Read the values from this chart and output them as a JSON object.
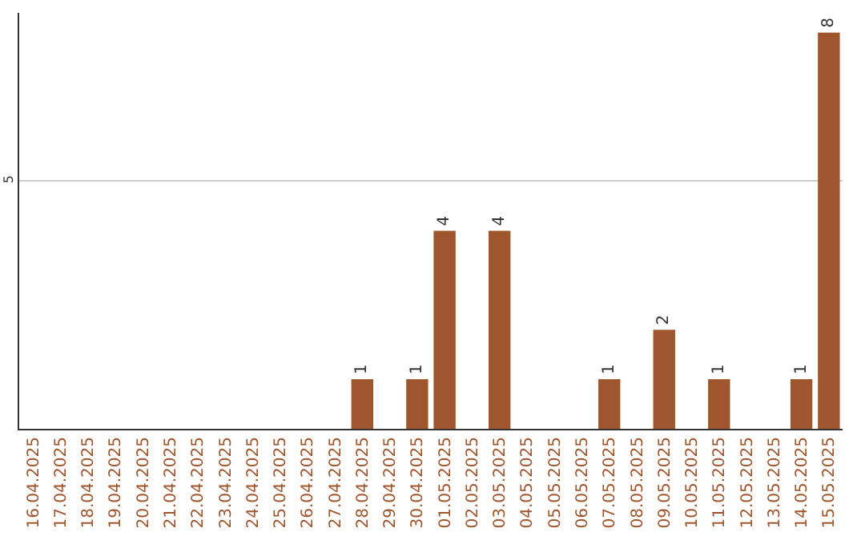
{
  "chart_data": {
    "type": "bar",
    "categories": [
      "16.04.2025",
      "17.04.2025",
      "18.04.2025",
      "19.04.2025",
      "20.04.2025",
      "21.04.2025",
      "22.04.2025",
      "23.04.2025",
      "24.04.2025",
      "25.04.2025",
      "26.04.2025",
      "27.04.2025",
      "28.04.2025",
      "29.04.2025",
      "30.04.2025",
      "01.05.2025",
      "02.05.2025",
      "03.05.2025",
      "04.05.2025",
      "05.05.2025",
      "06.05.2025",
      "07.05.2025",
      "08.05.2025",
      "09.05.2025",
      "10.05.2025",
      "11.05.2025",
      "12.05.2025",
      "13.05.2025",
      "14.05.2025",
      "15.05.2025"
    ],
    "values": [
      null,
      null,
      null,
      null,
      null,
      null,
      null,
      null,
      null,
      null,
      null,
      null,
      1,
      null,
      1,
      4,
      null,
      4,
      null,
      null,
      null,
      1,
      null,
      2,
      null,
      1,
      null,
      null,
      1,
      8
    ],
    "data_labels": true,
    "color": "#a0562c",
    "ylim": [
      0,
      8.4
    ],
    "yticks": [
      5
    ],
    "grid": "y",
    "legend": false
  }
}
